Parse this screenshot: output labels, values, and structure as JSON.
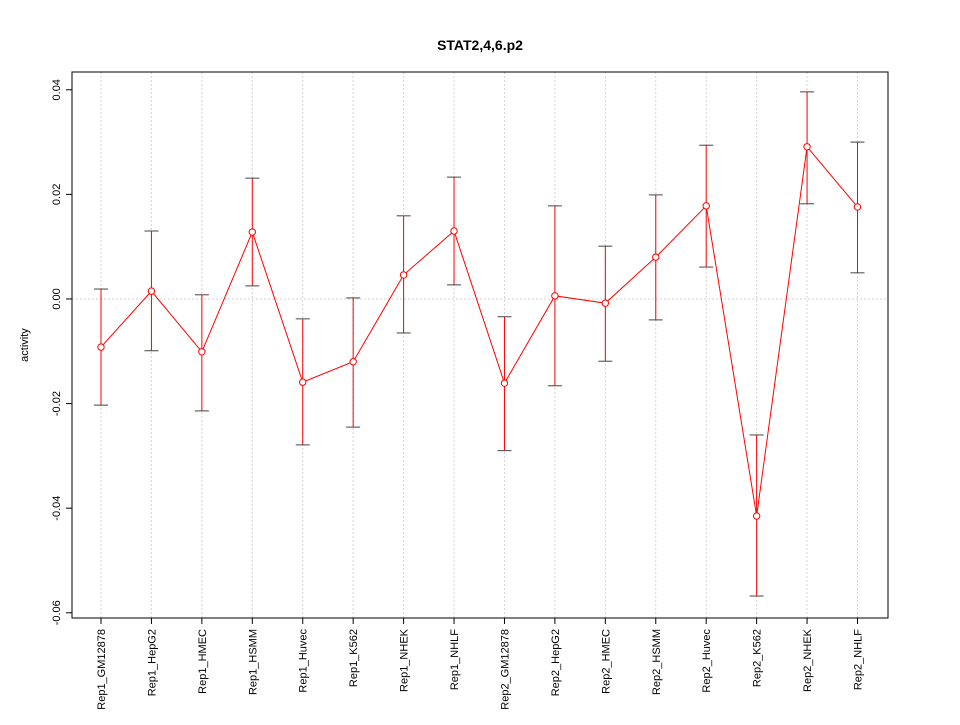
{
  "chart_data": {
    "type": "line",
    "title": "STAT2,4,6.p2",
    "xlabel": "",
    "ylabel": "activity",
    "ylim": [
      -0.061,
      0.0434
    ],
    "yticks": [
      -0.06,
      -0.04,
      -0.02,
      0.0,
      0.02,
      0.04
    ],
    "ytick_labels": [
      "-0.06",
      "-0.04",
      "-0.02",
      "0.00",
      "0.02",
      "0.04"
    ],
    "grid": true,
    "categories": [
      "Rep1_GM12878",
      "Rep1_HepG2",
      "Rep1_HMEC",
      "Rep1_HSMM",
      "Rep1_Huvec",
      "Rep1_K562",
      "Rep1_NHEK",
      "Rep1_NHLF",
      "Rep2_GM12878",
      "Rep2_HepG2",
      "Rep2_HMEC",
      "Rep2_HSMM",
      "Rep2_Huvec",
      "Rep2_K562",
      "Rep2_NHEK",
      "Rep2_NHLF"
    ],
    "series": [
      {
        "name": "activity",
        "color": "#ff0000",
        "values": [
          -0.0092,
          0.0015,
          -0.0101,
          0.0128,
          -0.0159,
          -0.012,
          0.0046,
          0.013,
          -0.0161,
          0.0006,
          -0.0008,
          0.008,
          0.0178,
          -0.0415,
          0.0291,
          0.0176
        ],
        "upper": [
          0.0019,
          0.013,
          0.0008,
          0.0231,
          -0.0038,
          0.0002,
          0.0159,
          0.0233,
          -0.0034,
          0.0178,
          0.0101,
          0.0199,
          0.0294,
          -0.026,
          0.0396,
          0.03
        ],
        "lower": [
          -0.0203,
          -0.0099,
          -0.0214,
          0.0025,
          -0.0279,
          -0.0245,
          -0.0065,
          0.0027,
          -0.029,
          -0.0166,
          -0.0119,
          -0.004,
          0.0061,
          -0.0568,
          0.0182,
          0.005
        ]
      }
    ]
  }
}
